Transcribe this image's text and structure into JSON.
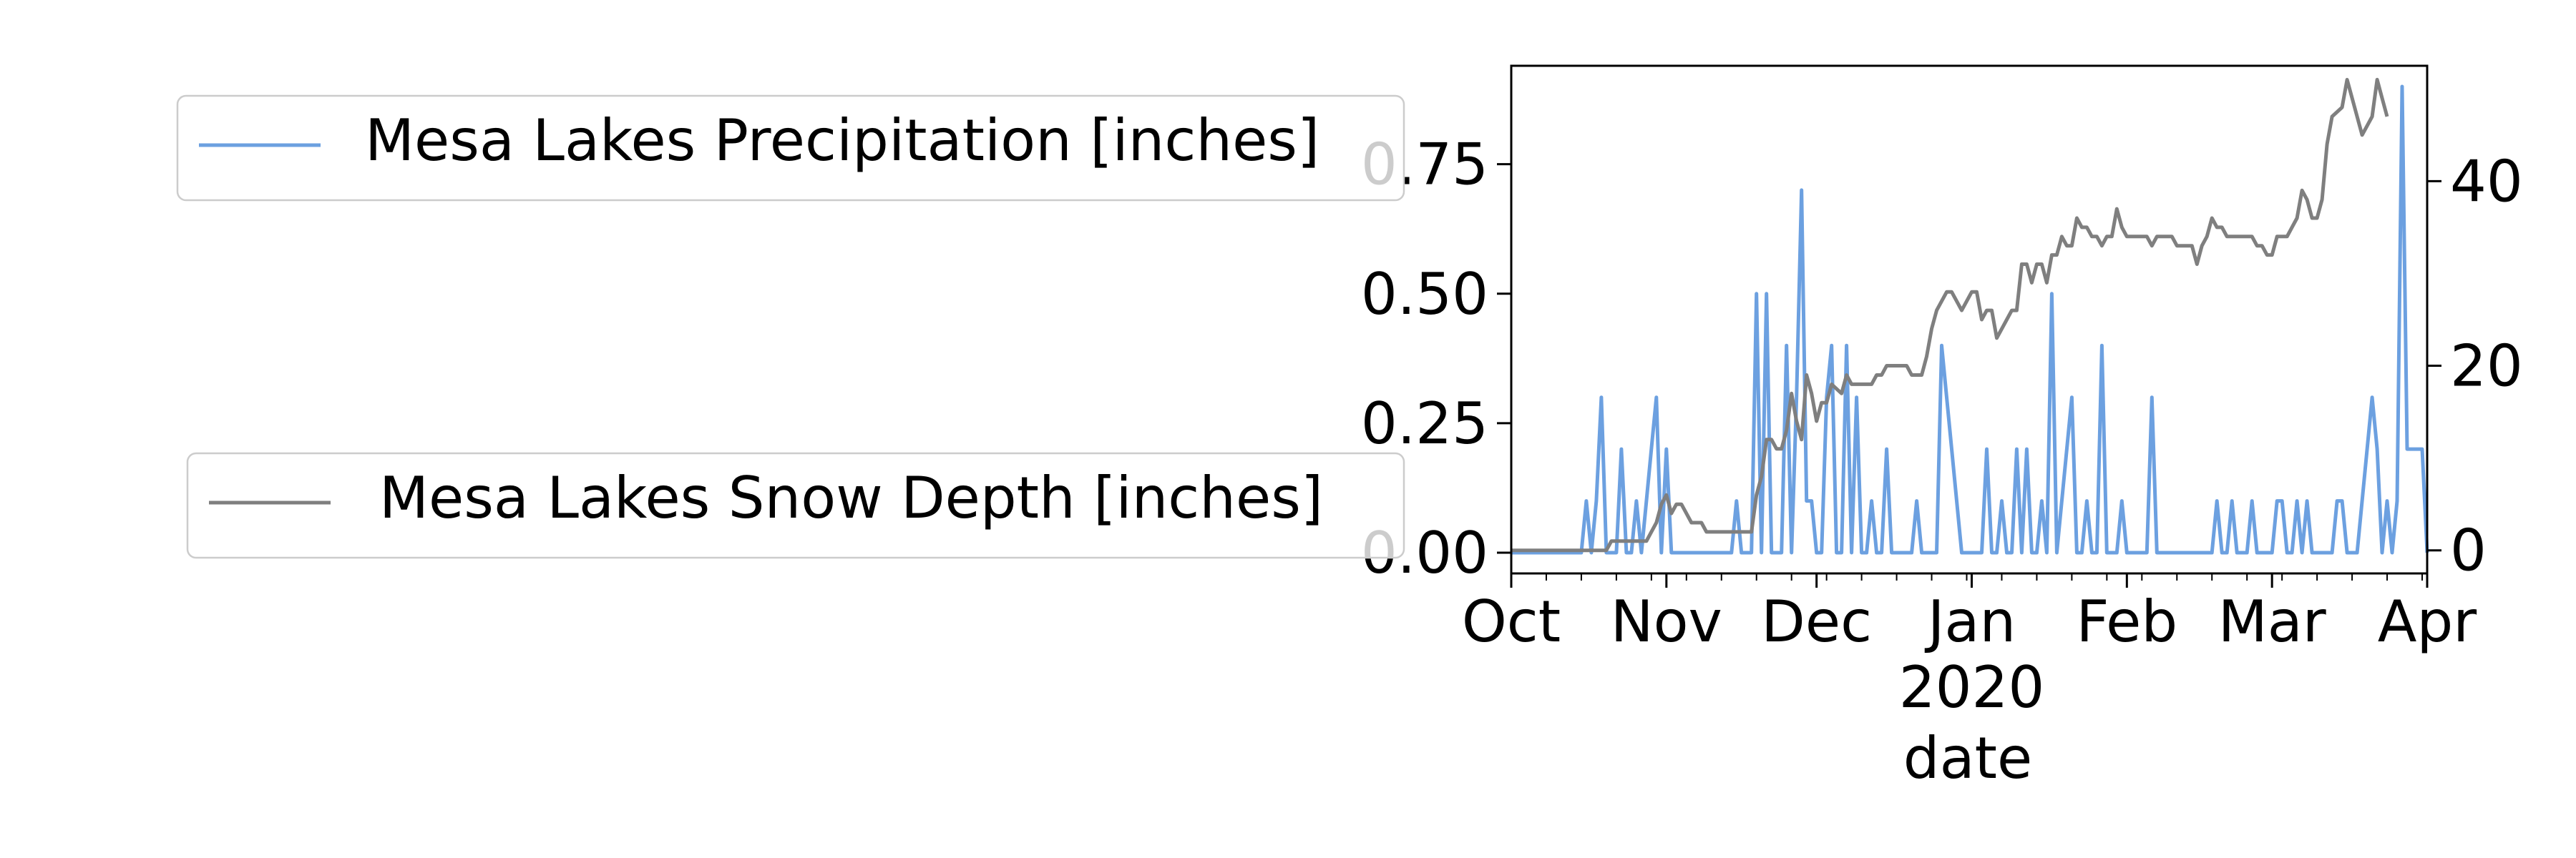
{
  "chart_data": {
    "type": "line",
    "xlabel": "date",
    "x_ticks": [
      {
        "label": "Oct",
        "date": "2019-10-01"
      },
      {
        "label": "Nov",
        "date": "2019-11-01"
      },
      {
        "label": "Dec",
        "date": "2019-12-01"
      },
      {
        "label": "Jan",
        "sub": "2020",
        "date": "2020-01-01"
      },
      {
        "label": "Feb",
        "date": "2020-02-01"
      },
      {
        "label": "Mar",
        "date": "2020-03-01"
      },
      {
        "label": "Apr",
        "date": "2020-04-01"
      }
    ],
    "xlim": [
      "2019-10-01",
      "2020-04-01"
    ],
    "y_left": {
      "lim": [
        -0.04,
        0.94
      ],
      "ticks": [
        "0.00",
        "0.25",
        "0.50",
        "0.75"
      ],
      "tick_values": [
        0,
        0.25,
        0.5,
        0.75
      ]
    },
    "y_right": {
      "lim": [
        -2.5,
        52.5
      ],
      "ticks": [
        "0",
        "20",
        "40"
      ],
      "tick_values": [
        0,
        20,
        40
      ]
    },
    "series": [
      {
        "name": "Mesa Lakes Precipitation [inches]",
        "axis": "left",
        "color": "#6ca0e0",
        "points": [
          [
            "2019-10-01",
            0
          ],
          [
            "2019-10-15",
            0
          ],
          [
            "2019-10-16",
            0.1
          ],
          [
            "2019-10-17",
            0
          ],
          [
            "2019-10-18",
            0.1
          ],
          [
            "2019-10-19",
            0.3
          ],
          [
            "2019-10-20",
            0
          ],
          [
            "2019-10-22",
            0
          ],
          [
            "2019-10-23",
            0.2
          ],
          [
            "2019-10-24",
            0
          ],
          [
            "2019-10-25",
            0
          ],
          [
            "2019-10-26",
            0.1
          ],
          [
            "2019-10-27",
            0
          ],
          [
            "2019-10-28",
            0.1
          ],
          [
            "2019-10-29",
            0.2
          ],
          [
            "2019-10-30",
            0.3
          ],
          [
            "2019-10-31",
            0
          ],
          [
            "2019-11-01",
            0.2
          ],
          [
            "2019-11-02",
            0
          ],
          [
            "2019-11-14",
            0
          ],
          [
            "2019-11-15",
            0.1
          ],
          [
            "2019-11-16",
            0
          ],
          [
            "2019-11-17",
            0
          ],
          [
            "2019-11-18",
            0
          ],
          [
            "2019-11-19",
            0.5
          ],
          [
            "2019-11-20",
            0
          ],
          [
            "2019-11-21",
            0.5
          ],
          [
            "2019-11-22",
            0
          ],
          [
            "2019-11-23",
            0
          ],
          [
            "2019-11-24",
            0
          ],
          [
            "2019-11-25",
            0.4
          ],
          [
            "2019-11-26",
            0
          ],
          [
            "2019-11-27",
            0.3
          ],
          [
            "2019-11-28",
            0.7
          ],
          [
            "2019-11-29",
            0.1
          ],
          [
            "2019-11-30",
            0.1
          ],
          [
            "2019-12-01",
            0
          ],
          [
            "2019-12-02",
            0
          ],
          [
            "2019-12-03",
            0.3
          ],
          [
            "2019-12-04",
            0.4
          ],
          [
            "2019-12-05",
            0
          ],
          [
            "2019-12-06",
            0
          ],
          [
            "2019-12-07",
            0.4
          ],
          [
            "2019-12-08",
            0
          ],
          [
            "2019-12-09",
            0.3
          ],
          [
            "2019-12-10",
            0
          ],
          [
            "2019-12-11",
            0
          ],
          [
            "2019-12-12",
            0.1
          ],
          [
            "2019-12-13",
            0
          ],
          [
            "2019-12-14",
            0
          ],
          [
            "2019-12-15",
            0.2
          ],
          [
            "2019-12-16",
            0
          ],
          [
            "2019-12-20",
            0
          ],
          [
            "2019-12-21",
            0.1
          ],
          [
            "2019-12-22",
            0
          ],
          [
            "2019-12-25",
            0
          ],
          [
            "2019-12-26",
            0.4
          ],
          [
            "2019-12-27",
            0.3
          ],
          [
            "2019-12-28",
            0.2
          ],
          [
            "2019-12-29",
            0.1
          ],
          [
            "2019-12-30",
            0
          ],
          [
            "2020-01-03",
            0
          ],
          [
            "2020-01-04",
            0.2
          ],
          [
            "2020-01-05",
            0
          ],
          [
            "2020-01-06",
            0
          ],
          [
            "2020-01-07",
            0.1
          ],
          [
            "2020-01-08",
            0
          ],
          [
            "2020-01-09",
            0
          ],
          [
            "2020-01-10",
            0.2
          ],
          [
            "2020-01-11",
            0
          ],
          [
            "2020-01-12",
            0.2
          ],
          [
            "2020-01-13",
            0
          ],
          [
            "2020-01-14",
            0
          ],
          [
            "2020-01-15",
            0.1
          ],
          [
            "2020-01-16",
            0
          ],
          [
            "2020-01-17",
            0.5
          ],
          [
            "2020-01-18",
            0
          ],
          [
            "2020-01-19",
            0.1
          ],
          [
            "2020-01-20",
            0.2
          ],
          [
            "2020-01-21",
            0.3
          ],
          [
            "2020-01-22",
            0
          ],
          [
            "2020-01-23",
            0
          ],
          [
            "2020-01-24",
            0.1
          ],
          [
            "2020-01-25",
            0
          ],
          [
            "2020-01-26",
            0
          ],
          [
            "2020-01-27",
            0.4
          ],
          [
            "2020-01-28",
            0
          ],
          [
            "2020-01-29",
            0
          ],
          [
            "2020-01-30",
            0
          ],
          [
            "2020-01-31",
            0.1
          ],
          [
            "2020-02-01",
            0
          ],
          [
            "2020-02-05",
            0
          ],
          [
            "2020-02-06",
            0.3
          ],
          [
            "2020-02-07",
            0
          ],
          [
            "2020-02-18",
            0
          ],
          [
            "2020-02-19",
            0.1
          ],
          [
            "2020-02-20",
            0
          ],
          [
            "2020-02-21",
            0
          ],
          [
            "2020-02-22",
            0.1
          ],
          [
            "2020-02-23",
            0
          ],
          [
            "2020-02-24",
            0
          ],
          [
            "2020-02-25",
            0
          ],
          [
            "2020-02-26",
            0.1
          ],
          [
            "2020-02-27",
            0
          ],
          [
            "2020-03-01",
            0
          ],
          [
            "2020-03-02",
            0.1
          ],
          [
            "2020-03-03",
            0.1
          ],
          [
            "2020-03-04",
            0
          ],
          [
            "2020-03-05",
            0
          ],
          [
            "2020-03-06",
            0.1
          ],
          [
            "2020-03-07",
            0
          ],
          [
            "2020-03-08",
            0.1
          ],
          [
            "2020-03-09",
            0
          ],
          [
            "2020-03-13",
            0
          ],
          [
            "2020-03-14",
            0.1
          ],
          [
            "2020-03-15",
            0.1
          ],
          [
            "2020-03-16",
            0
          ],
          [
            "2020-03-18",
            0
          ],
          [
            "2020-03-21",
            0.3
          ],
          [
            "2020-03-22",
            0.2
          ],
          [
            "2020-03-23",
            0
          ],
          [
            "2020-03-24",
            0.1
          ],
          [
            "2020-03-25",
            0
          ],
          [
            "2020-03-26",
            0.1
          ],
          [
            "2020-03-27",
            0.9
          ],
          [
            "2020-03-28",
            0.2
          ],
          [
            "2020-03-31",
            0.2
          ],
          [
            "2020-04-01",
            0
          ]
        ]
      },
      {
        "name": "Mesa Lakes Snow Depth [inches]",
        "axis": "right",
        "color": "#7f7f7f",
        "points": [
          [
            "2019-10-01",
            0
          ],
          [
            "2019-10-20",
            0
          ],
          [
            "2019-10-21",
            1
          ],
          [
            "2019-10-28",
            1
          ],
          [
            "2019-10-29",
            2
          ],
          [
            "2019-10-30",
            3
          ],
          [
            "2019-10-31",
            5
          ],
          [
            "2019-11-01",
            6
          ],
          [
            "2019-11-02",
            4
          ],
          [
            "2019-11-03",
            5
          ],
          [
            "2019-11-04",
            5
          ],
          [
            "2019-11-05",
            4
          ],
          [
            "2019-11-06",
            3
          ],
          [
            "2019-11-08",
            3
          ],
          [
            "2019-11-09",
            2
          ],
          [
            "2019-11-17",
            2
          ],
          [
            "2019-11-18",
            2
          ],
          [
            "2019-11-19",
            6
          ],
          [
            "2019-11-20",
            8
          ],
          [
            "2019-11-21",
            12
          ],
          [
            "2019-11-22",
            12
          ],
          [
            "2019-11-23",
            11
          ],
          [
            "2019-11-24",
            11
          ],
          [
            "2019-11-25",
            13
          ],
          [
            "2019-11-26",
            17
          ],
          [
            "2019-11-27",
            14
          ],
          [
            "2019-11-28",
            12
          ],
          [
            "2019-11-29",
            19
          ],
          [
            "2019-11-30",
            17
          ],
          [
            "2019-12-01",
            14
          ],
          [
            "2019-12-02",
            16
          ],
          [
            "2019-12-03",
            16
          ],
          [
            "2019-12-04",
            18
          ],
          [
            "2019-12-06",
            17
          ],
          [
            "2019-12-07",
            19
          ],
          [
            "2019-12-08",
            18
          ],
          [
            "2019-12-12",
            18
          ],
          [
            "2019-12-13",
            19
          ],
          [
            "2019-12-14",
            19
          ],
          [
            "2019-12-15",
            20
          ],
          [
            "2019-12-19",
            20
          ],
          [
            "2019-12-20",
            19
          ],
          [
            "2019-12-22",
            19
          ],
          [
            "2019-12-23",
            21
          ],
          [
            "2019-12-24",
            24
          ],
          [
            "2019-12-25",
            26
          ],
          [
            "2019-12-26",
            27
          ],
          [
            "2019-12-27",
            28
          ],
          [
            "2019-12-28",
            28
          ],
          [
            "2019-12-29",
            27
          ],
          [
            "2019-12-30",
            26
          ],
          [
            "2019-12-31",
            27
          ],
          [
            "2020-01-01",
            28
          ],
          [
            "2020-01-02",
            28
          ],
          [
            "2020-01-03",
            25
          ],
          [
            "2020-01-04",
            26
          ],
          [
            "2020-01-05",
            26
          ],
          [
            "2020-01-06",
            23
          ],
          [
            "2020-01-07",
            24
          ],
          [
            "2020-01-08",
            25
          ],
          [
            "2020-01-09",
            26
          ],
          [
            "2020-01-10",
            26
          ],
          [
            "2020-01-11",
            31
          ],
          [
            "2020-01-12",
            31
          ],
          [
            "2020-01-13",
            29
          ],
          [
            "2020-01-14",
            31
          ],
          [
            "2020-01-15",
            31
          ],
          [
            "2020-01-16",
            29
          ],
          [
            "2020-01-17",
            32
          ],
          [
            "2020-01-18",
            32
          ],
          [
            "2020-01-19",
            34
          ],
          [
            "2020-01-20",
            33
          ],
          [
            "2020-01-21",
            33
          ],
          [
            "2020-01-22",
            36
          ],
          [
            "2020-01-23",
            35
          ],
          [
            "2020-01-24",
            35
          ],
          [
            "2020-01-25",
            34
          ],
          [
            "2020-01-26",
            34
          ],
          [
            "2020-01-27",
            33
          ],
          [
            "2020-01-28",
            34
          ],
          [
            "2020-01-29",
            34
          ],
          [
            "2020-01-30",
            37
          ],
          [
            "2020-01-31",
            35
          ],
          [
            "2020-02-01",
            34
          ],
          [
            "2020-02-05",
            34
          ],
          [
            "2020-02-06",
            33
          ],
          [
            "2020-02-07",
            34
          ],
          [
            "2020-02-10",
            34
          ],
          [
            "2020-02-11",
            33
          ],
          [
            "2020-02-14",
            33
          ],
          [
            "2020-02-15",
            31
          ],
          [
            "2020-02-16",
            33
          ],
          [
            "2020-02-17",
            34
          ],
          [
            "2020-02-18",
            36
          ],
          [
            "2020-02-19",
            35
          ],
          [
            "2020-02-20",
            35
          ],
          [
            "2020-02-21",
            34
          ],
          [
            "2020-02-26",
            34
          ],
          [
            "2020-02-27",
            33
          ],
          [
            "2020-02-28",
            33
          ],
          [
            "2020-02-29",
            32
          ],
          [
            "2020-03-01",
            32
          ],
          [
            "2020-03-02",
            34
          ],
          [
            "2020-03-04",
            34
          ],
          [
            "2020-03-05",
            35
          ],
          [
            "2020-03-06",
            36
          ],
          [
            "2020-03-07",
            39
          ],
          [
            "2020-03-08",
            38
          ],
          [
            "2020-03-09",
            36
          ],
          [
            "2020-03-10",
            36
          ],
          [
            "2020-03-11",
            38
          ],
          [
            "2020-03-12",
            44
          ],
          [
            "2020-03-13",
            47
          ],
          [
            "2020-03-15",
            48
          ],
          [
            "2020-03-16",
            51
          ],
          [
            "2020-03-17",
            49
          ],
          [
            "2020-03-18",
            47
          ],
          [
            "2020-03-19",
            45
          ],
          [
            "2020-03-20",
            46
          ],
          [
            "2020-03-21",
            47
          ],
          [
            "2020-03-22",
            51
          ],
          [
            "2020-03-23",
            49
          ],
          [
            "2020-03-24",
            47
          ]
        ]
      }
    ]
  }
}
